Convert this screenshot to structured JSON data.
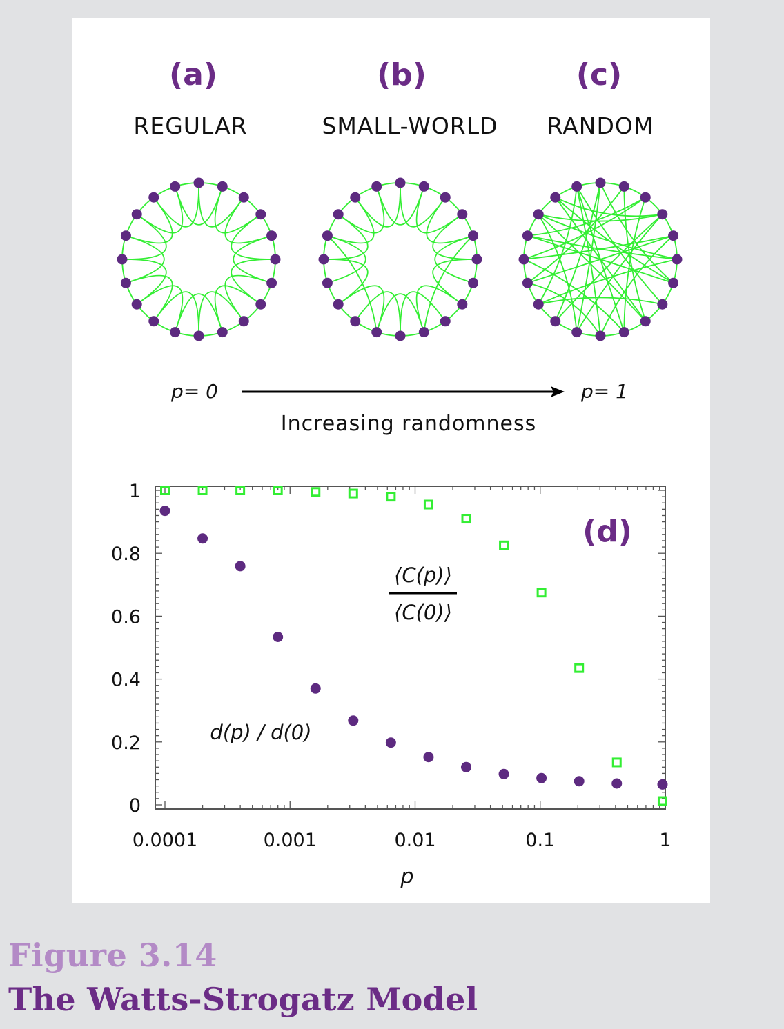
{
  "panels": [
    {
      "letter": "(a)",
      "label": "REGULAR"
    },
    {
      "letter": "(b)",
      "label": "SMALL-WORLD"
    },
    {
      "letter": "(c)",
      "label": "RANDOM"
    }
  ],
  "arrow": {
    "left": "p= 0",
    "right": "p= 1",
    "caption": "Increasing randomness"
  },
  "chart_data": {
    "type": "scatter",
    "panel_label": "(d)",
    "xlabel": "p",
    "x_scale": "log",
    "xlim": [
      0.0001,
      1
    ],
    "ylim": [
      0,
      1
    ],
    "x_ticks": [
      "0.0001",
      "0.001",
      "0.01",
      "0.1",
      "1"
    ],
    "y_ticks": [
      "0",
      "0.2",
      "0.4",
      "0.6",
      "0.8",
      "1"
    ],
    "series": [
      {
        "name": "⟨C(p)⟩ / ⟨C(0)⟩",
        "marker": "open-square",
        "color": "#33ee33",
        "x": [
          0.0001,
          0.0002,
          0.0004,
          0.0008,
          0.0016,
          0.0032,
          0.0064,
          0.0128,
          0.0256,
          0.0512,
          0.1024,
          0.2048,
          0.4096,
          0.95
        ],
        "y": [
          1.0,
          1.0,
          1.0,
          1.0,
          0.995,
          0.99,
          0.98,
          0.955,
          0.91,
          0.825,
          0.675,
          0.435,
          0.135,
          0.012
        ]
      },
      {
        "name": "d(p) / d(0)",
        "marker": "filled-circle",
        "color": "#5d2a80",
        "x": [
          0.0001,
          0.0002,
          0.0004,
          0.0008,
          0.0016,
          0.0032,
          0.0064,
          0.0128,
          0.0256,
          0.0512,
          0.1024,
          0.2048,
          0.4096,
          0.95
        ],
        "y": [
          0.935,
          0.847,
          0.759,
          0.534,
          0.37,
          0.268,
          0.198,
          0.152,
          0.12,
          0.098,
          0.085,
          0.075,
          0.068,
          0.065
        ]
      }
    ]
  },
  "figure": {
    "number": "Figure 3.14",
    "title": "The Watts-Strogatz Model"
  },
  "colors": {
    "accent_purple": "#6b2c86",
    "node": "#5d2a80",
    "edge": "#33ee33"
  }
}
